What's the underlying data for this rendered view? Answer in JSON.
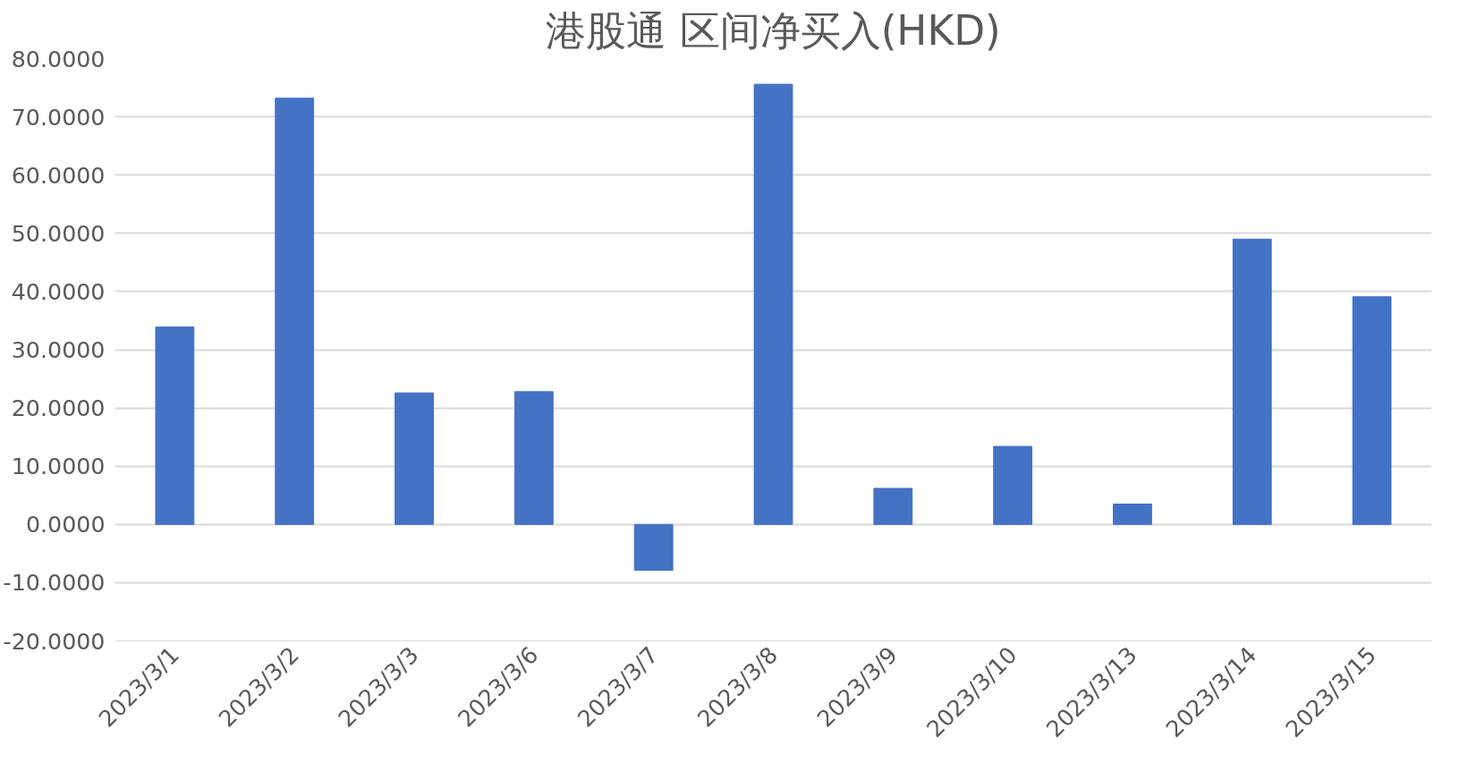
{
  "chart_data": {
    "type": "bar",
    "title": "港股通 区间净买入(HKD)",
    "categories": [
      "2023/3/1",
      "2023/3/2",
      "2023/3/3",
      "2023/3/6",
      "2023/3/7",
      "2023/3/8",
      "2023/3/9",
      "2023/3/10",
      "2023/3/13",
      "2023/3/14",
      "2023/3/15"
    ],
    "values": [
      33.9,
      73.2,
      22.6,
      22.8,
      -7.9,
      75.6,
      6.2,
      13.4,
      3.5,
      49.0,
      39.1
    ],
    "color": "#4472c4",
    "ylim": [
      -20,
      80
    ],
    "yticks": [
      {
        "value": -20,
        "label": "-20.0000"
      },
      {
        "value": -10,
        "label": "-10.0000"
      },
      {
        "value": 0,
        "label": "0.0000"
      },
      {
        "value": 10,
        "label": "10.0000"
      },
      {
        "value": 20,
        "label": "20.0000"
      },
      {
        "value": 30,
        "label": "30.0000"
      },
      {
        "value": 40,
        "label": "40.0000"
      },
      {
        "value": 50,
        "label": "50.0000"
      },
      {
        "value": 60,
        "label": "60.0000"
      },
      {
        "value": 70,
        "label": "70.0000"
      },
      {
        "value": 80,
        "label": "80.0000"
      }
    ],
    "grid": "y"
  }
}
